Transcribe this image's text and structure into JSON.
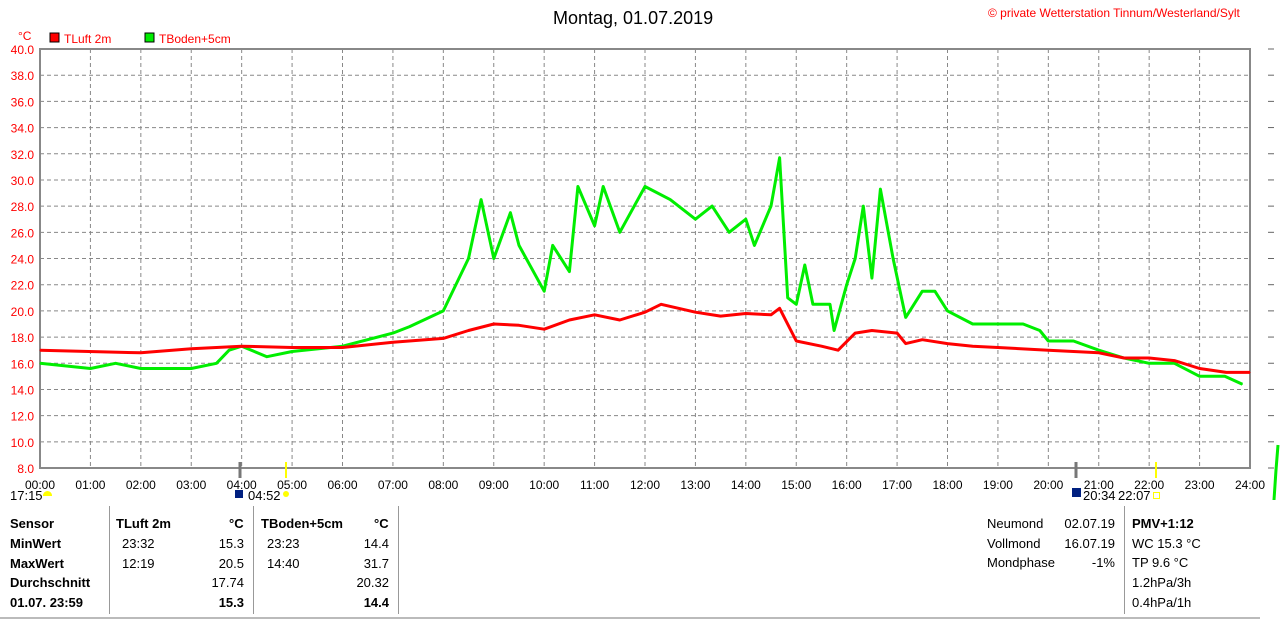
{
  "header": {
    "title": "Montag, 01.07.2019",
    "copyright": "© private Wetterstation Tinnum/Westerland/Sylt"
  },
  "chart_data": {
    "type": "line",
    "title": "Montag, 01.07.2019",
    "ylabel": "°C",
    "ylim": [
      8,
      40
    ],
    "xlim": [
      0,
      24
    ],
    "grid": true,
    "yticks": [
      "8.0",
      "10.0",
      "12.0",
      "14.0",
      "16.0",
      "18.0",
      "20.0",
      "22.0",
      "24.0",
      "26.0",
      "28.0",
      "30.0",
      "32.0",
      "34.0",
      "36.0",
      "38.0",
      "40.0"
    ],
    "xticks": [
      "00:00",
      "01:00",
      "02:00",
      "03:00",
      "04:00",
      "05:00",
      "06:00",
      "07:00",
      "08:00",
      "09:00",
      "10:00",
      "11:00",
      "12:00",
      "13:00",
      "14:00",
      "15:00",
      "16:00",
      "17:00",
      "18:00",
      "19:00",
      "20:00",
      "21:00",
      "22:00",
      "23:00",
      "24:00"
    ],
    "legend": "top-left",
    "series": [
      {
        "name": "TLuft 2m",
        "color": "#ff0000",
        "x": [
          0,
          2,
          3,
          4,
          5,
          6,
          7,
          8,
          8.5,
          9,
          9.5,
          10,
          10.5,
          11,
          11.5,
          12,
          12.32,
          13,
          13.5,
          14,
          14.5,
          14.67,
          15,
          15.5,
          15.83,
          16.17,
          16.5,
          17,
          17.17,
          17.5,
          18,
          18.5,
          19,
          20,
          21,
          21.5,
          22,
          22.5,
          23,
          23.53,
          24
        ],
        "y": [
          17.0,
          16.8,
          17.1,
          17.3,
          17.2,
          17.2,
          17.6,
          17.9,
          18.5,
          19.0,
          18.9,
          18.6,
          19.3,
          19.7,
          19.3,
          19.9,
          20.5,
          19.9,
          19.6,
          19.8,
          19.7,
          20.2,
          17.7,
          17.3,
          17.0,
          18.3,
          18.5,
          18.3,
          17.5,
          17.8,
          17.5,
          17.3,
          17.2,
          17.0,
          16.8,
          16.4,
          16.4,
          16.2,
          15.6,
          15.3,
          15.3
        ]
      },
      {
        "name": "TBoden+5cm",
        "color": "#00ee00",
        "x": [
          0,
          1,
          1.5,
          2,
          3,
          3.5,
          3.75,
          4,
          4.5,
          5,
          6,
          7,
          7.33,
          8,
          8.5,
          8.75,
          9,
          9.33,
          9.5,
          10,
          10.17,
          10.5,
          10.67,
          11,
          11.17,
          11.5,
          12,
          12.5,
          13,
          13.33,
          13.67,
          14,
          14.17,
          14.5,
          14.67,
          14.83,
          15,
          15.17,
          15.33,
          15.67,
          15.75,
          16,
          16.17,
          16.33,
          16.5,
          16.67,
          16.92,
          17.17,
          17.5,
          17.75,
          18,
          18.5,
          19,
          19.5,
          19.83,
          20,
          20.5,
          21,
          21.5,
          22,
          22.5,
          23,
          23.5,
          23.85
        ],
        "y": [
          16.0,
          15.6,
          16.0,
          15.6,
          15.6,
          16.0,
          17.0,
          17.3,
          16.5,
          16.9,
          17.3,
          18.3,
          18.8,
          20.0,
          24.0,
          28.5,
          24.0,
          27.5,
          25.0,
          21.5,
          25.0,
          23.0,
          29.5,
          26.5,
          29.5,
          26.0,
          29.5,
          28.5,
          27.0,
          28.0,
          26.0,
          27.0,
          25.0,
          28.0,
          31.7,
          21.0,
          20.5,
          23.5,
          20.5,
          20.5,
          18.5,
          22.0,
          24.0,
          28.0,
          22.5,
          29.3,
          24.0,
          19.5,
          21.5,
          21.5,
          20.0,
          19.0,
          19.0,
          19.0,
          18.5,
          17.7,
          17.7,
          17.0,
          16.4,
          16.0,
          16.0,
          15.0,
          15.0,
          14.4
        ]
      }
    ]
  },
  "astro": {
    "moonset_left": "17:15",
    "sunrise": "04:52",
    "moonrise": "20:34",
    "sunset": "22:07"
  },
  "table": {
    "row_labels": [
      "Sensor",
      "MinWert",
      "MaxWert",
      "Durchschnitt",
      "01.07. 23:59"
    ],
    "col1": {
      "name": "TLuft 2m",
      "unit": "°C",
      "min_time": "23:32",
      "min": "15.3",
      "max_time": "12:19",
      "max": "20.5",
      "avg": "17.74",
      "current": "15.3"
    },
    "col2": {
      "name": "TBoden+5cm",
      "unit": "°C",
      "min_time": "23:23",
      "min": "14.4",
      "max_time": "14:40",
      "max": "31.7",
      "avg": "20.32",
      "current": "14.4"
    }
  },
  "moon": {
    "rows": [
      {
        "label": "Neumond",
        "value": "02.07.19"
      },
      {
        "label": "Vollmond",
        "value": "16.07.19"
      },
      {
        "label": "Mondphase",
        "value": "-1%"
      }
    ]
  },
  "extra": {
    "pmv": "PMV+1:12",
    "wc": "WC 15.3 °C",
    "tp": "TP 9.6 °C",
    "p3h": "1.2hPa/3h",
    "p1h": "0.4hPa/1h"
  }
}
